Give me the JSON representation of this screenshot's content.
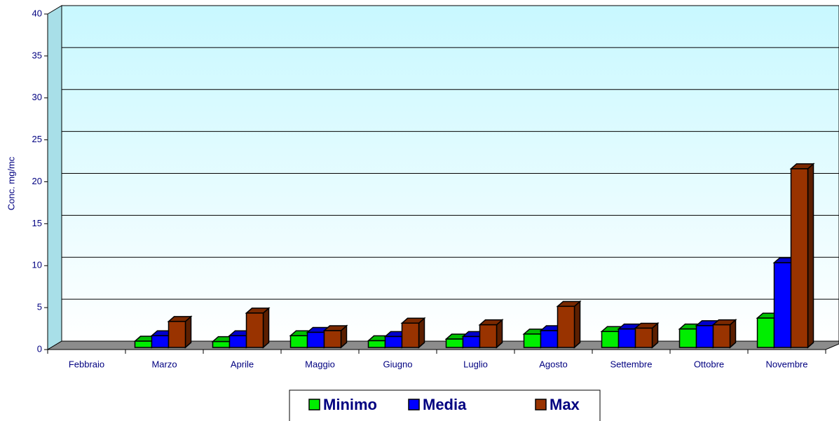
{
  "chart_data": {
    "type": "bar3d",
    "y_label": "Conc. mg/mc",
    "categories": [
      "Febbraio",
      "Marzo",
      "Aprile",
      "Maggio",
      "Giugno",
      "Luglio",
      "Agosto",
      "Settembre",
      "Ottobre",
      "Novembre"
    ],
    "series": [
      {
        "name": "Minimo",
        "color": "#00ee00",
        "values": [
          null,
          0.75,
          0.7,
          1.4,
          0.8,
          1.0,
          1.6,
          1.9,
          2.2,
          3.5
        ]
      },
      {
        "name": "Media",
        "color": "#0000ff",
        "values": [
          null,
          1.4,
          1.4,
          1.8,
          1.3,
          1.3,
          2.0,
          2.2,
          2.6,
          10.1
        ]
      },
      {
        "name": "Max",
        "color": "#993300",
        "values": [
          null,
          3.1,
          4.1,
          2.0,
          2.9,
          2.7,
          4.9,
          2.3,
          2.7,
          21.3
        ]
      }
    ],
    "ylim": [
      0,
      40
    ],
    "yticks": [
      0,
      5,
      10,
      15,
      20,
      25,
      30,
      35,
      40
    ],
    "grid": true,
    "legend": "bottom"
  }
}
